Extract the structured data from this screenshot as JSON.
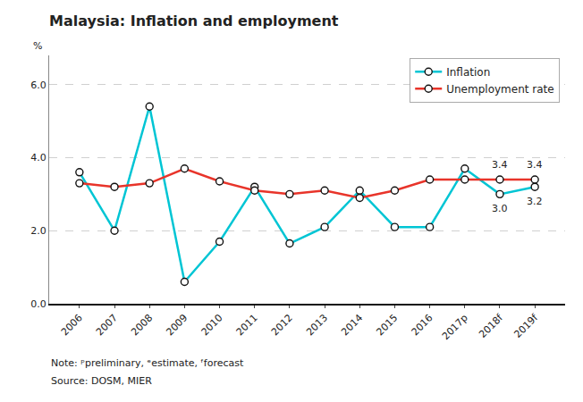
{
  "chart_data": {
    "type": "line",
    "title": "Malaysia: Inflation and employment",
    "ylabel": "%",
    "categories": [
      "2006",
      "2007",
      "2008",
      "2009",
      "2010",
      "2011",
      "2012",
      "2013",
      "2014",
      "2015",
      "2016",
      "2017p",
      "2018f",
      "2019f"
    ],
    "series": [
      {
        "name": "Inflation",
        "color": "#00c5d4",
        "values": [
          3.6,
          2.0,
          5.4,
          0.6,
          1.7,
          3.2,
          1.65,
          2.1,
          3.1,
          2.1,
          2.1,
          3.7,
          3.0,
          3.2
        ]
      },
      {
        "name": "Unemployment rate",
        "color": "#e8342a",
        "values": [
          3.3,
          3.2,
          3.3,
          3.7,
          3.35,
          3.1,
          3.0,
          3.1,
          2.9,
          3.1,
          3.4,
          3.4,
          3.4,
          3.4
        ]
      }
    ],
    "marker": "circle",
    "ylim": [
      0.0,
      6.8
    ],
    "yticks": [
      {
        "value": 0.0,
        "label": "0.0"
      },
      {
        "value": 2.0,
        "label": "2.0"
      },
      {
        "value": 4.0,
        "label": "4.0"
      },
      {
        "value": 6.0,
        "label": "6.0"
      }
    ],
    "grid": true,
    "legend": "upper right",
    "annotations": [
      {
        "x": "2018f",
        "y": 3.0,
        "text": "3.0"
      },
      {
        "x": "2018f",
        "y": 3.4,
        "text": "3.4"
      },
      {
        "x": "2019f",
        "y": 3.2,
        "text": "3.2"
      },
      {
        "x": "2019f",
        "y": 3.4,
        "text": "3.4"
      },
      {
        "text": "Note: ᵖpreliminary, ᵉestimate, ᶠforecast"
      },
      {
        "text": "Source: DOSM, MIER"
      }
    ]
  }
}
